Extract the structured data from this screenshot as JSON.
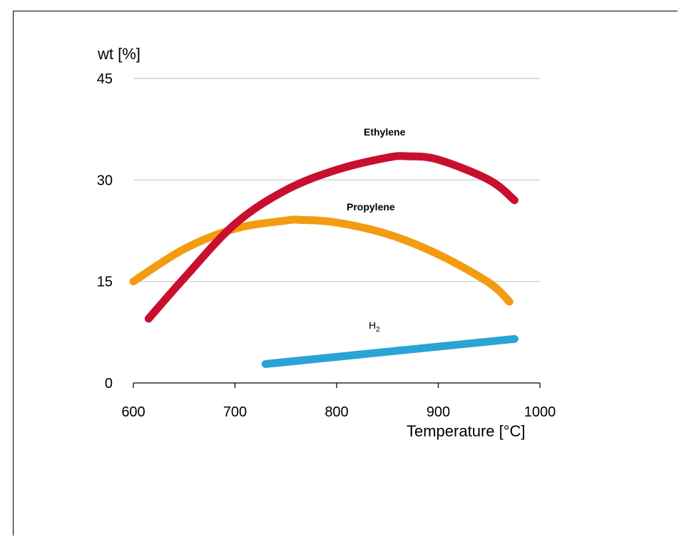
{
  "chart_data": {
    "type": "line",
    "title": "",
    "xlabel": "Temperature [°C]",
    "ylabel": "wt [%]",
    "xlim": [
      600,
      1000
    ],
    "ylim": [
      0,
      45
    ],
    "x_ticks": [
      "600",
      "700",
      "800",
      "900",
      "1000"
    ],
    "y_ticks": [
      "0",
      "15",
      "30",
      "45"
    ],
    "grid": "horizontal",
    "series": [
      {
        "name": "Ethylene",
        "color": "#c8102e",
        "x": [
          615,
          650,
          700,
          750,
          800,
          850,
          870,
          900,
          950,
          975
        ],
        "y": [
          9.5,
          15.5,
          23.5,
          28.5,
          31.5,
          33.3,
          33.5,
          33.0,
          30.0,
          27.0
        ]
      },
      {
        "name": "Propylene",
        "color": "#f39c12",
        "x": [
          600,
          650,
          700,
          750,
          765,
          800,
          850,
          900,
          950,
          970
        ],
        "y": [
          15.0,
          19.8,
          22.8,
          24.0,
          24.1,
          23.7,
          22.0,
          19.0,
          14.8,
          12.0
        ]
      },
      {
        "name": "H",
        "name_sub": "2",
        "color": "#2aa4d5",
        "x": [
          730,
          975
        ],
        "y": [
          2.8,
          6.5
        ]
      }
    ]
  }
}
